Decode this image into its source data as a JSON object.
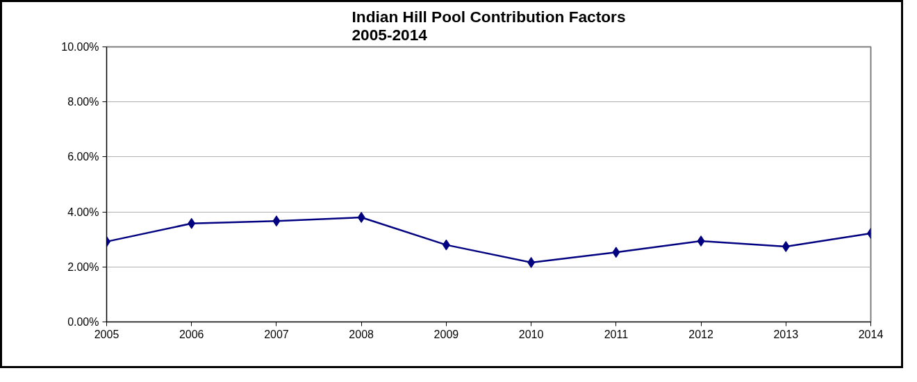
{
  "chart_data": {
    "type": "line",
    "title": "Indian Hill Pool Contribution Factors\n2005-2014",
    "x": [
      2005,
      2006,
      2007,
      2008,
      2009,
      2010,
      2011,
      2012,
      2013,
      2014
    ],
    "series": [
      {
        "color": "#000080",
        "values": [
          2.92,
          3.58,
          3.67,
          3.8,
          2.8,
          2.16,
          2.53,
          2.94,
          2.74,
          3.22
        ]
      }
    ],
    "xlim": [
      2005,
      2014
    ],
    "xticks": [
      2005,
      2006,
      2007,
      2008,
      2009,
      2010,
      2011,
      2012,
      2013,
      2014
    ],
    "ylim": [
      0,
      10
    ],
    "yticks": [
      {
        "value": 0,
        "label": "0.00%"
      },
      {
        "value": 2,
        "label": "2.00%"
      },
      {
        "value": 4,
        "label": "4.00%"
      },
      {
        "value": 6,
        "label": "6.00%"
      },
      {
        "value": 8,
        "label": "8.00%"
      },
      {
        "value": 10,
        "label": "10.00%"
      }
    ],
    "grid": "y",
    "marker": "diamond",
    "line_style": "solid"
  }
}
